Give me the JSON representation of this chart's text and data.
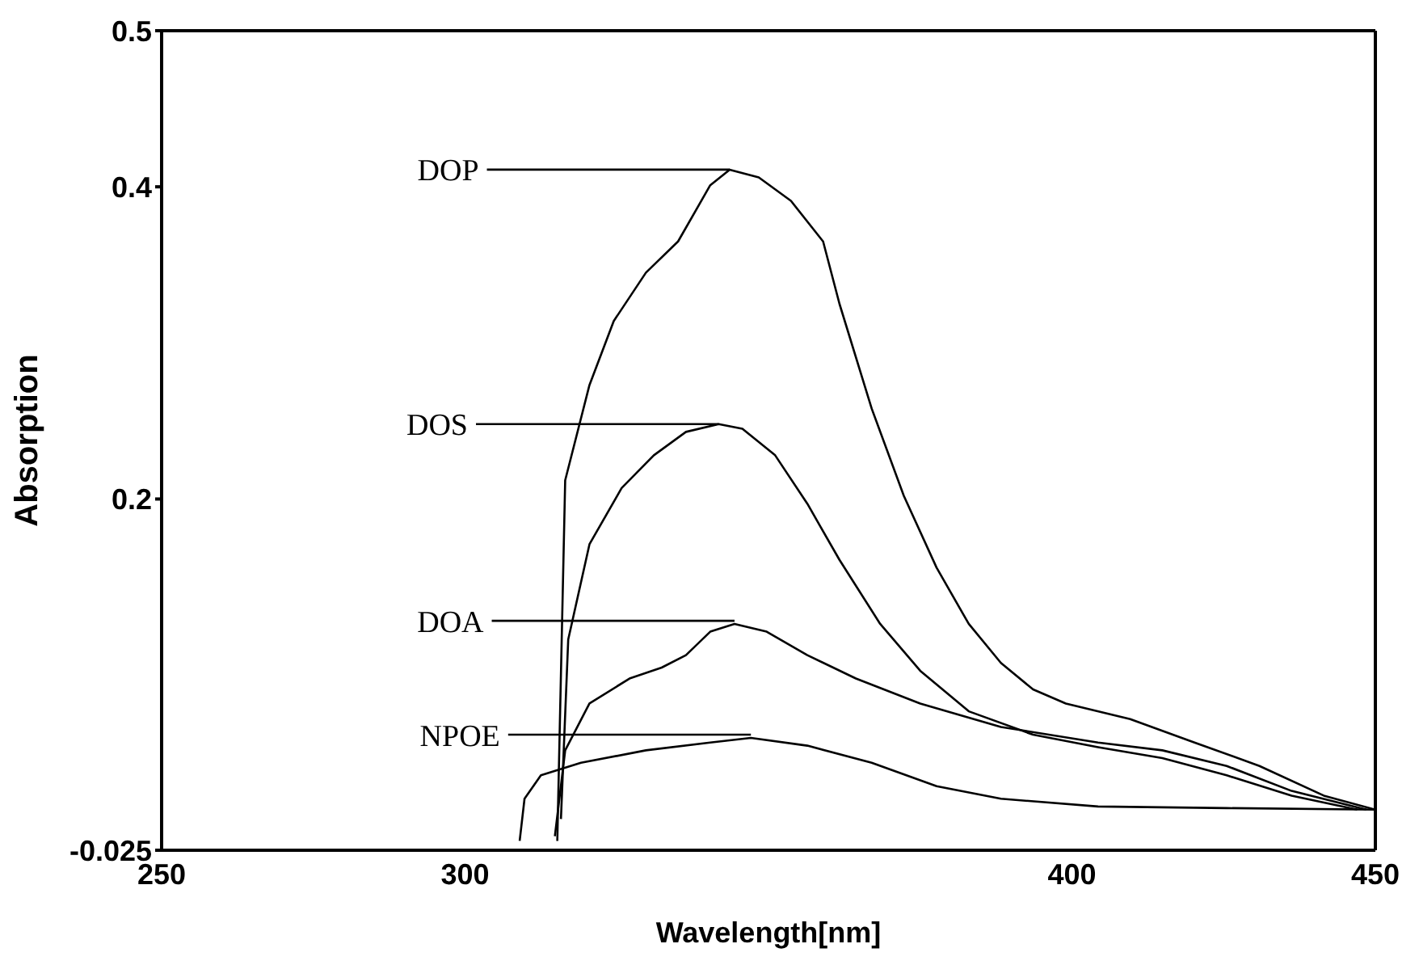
{
  "chart_data": {
    "type": "line",
    "xlabel": "Wavelength[nm]",
    "ylabel": "Absorption",
    "xlim": [
      250,
      450
    ],
    "xticks": [
      250,
      300,
      400,
      450
    ],
    "ylim": [
      -0.025,
      0.5
    ],
    "yticks": [
      -0.025,
      0.2,
      0.4,
      0.5
    ],
    "grid": false,
    "marker": "none",
    "line_style": "solid",
    "series": [
      {
        "color": "#000000",
        "x": [
          315.2,
          316.5,
          320.5,
          324.5,
          329.8,
          335.1,
          340.4,
          343.6,
          348.4,
          353.7,
          359.0,
          361.7,
          367.0,
          372.3,
          377.7,
          383.0,
          388.3,
          393.6,
          399.0,
          409.6,
          420.2,
          430.9,
          441.5,
          450
        ],
        "values": [
          -0.019,
          0.212,
          0.273,
          0.314,
          0.345,
          0.365,
          0.401,
          0.411,
          0.406,
          0.391,
          0.365,
          0.325,
          0.258,
          0.202,
          0.156,
          0.12,
          0.095,
          0.078,
          0.069,
          0.059,
          0.044,
          0.029,
          0.01,
          0.001
        ]
      },
      {
        "color": "#000000",
        "x": [
          315.8,
          317.0,
          320.5,
          325.8,
          331.1,
          336.4,
          341.8,
          345.7,
          351.1,
          356.4,
          361.7,
          368.4,
          375.0,
          383.0,
          393.6,
          404.3,
          414.9,
          425.5,
          436.2,
          447
        ],
        "values": [
          -0.005,
          0.11,
          0.171,
          0.207,
          0.228,
          0.243,
          0.248,
          0.245,
          0.228,
          0.197,
          0.161,
          0.12,
          0.09,
          0.064,
          0.049,
          0.041,
          0.034,
          0.023,
          0.01,
          0.001
        ]
      },
      {
        "color": "#000000",
        "x": [
          314.8,
          316.5,
          320.5,
          327.1,
          332.4,
          336.4,
          340.4,
          344.4,
          349.7,
          356.4,
          364.4,
          375.0,
          388.3,
          404.3,
          414.9,
          425.5,
          436.2,
          448.5
        ],
        "values": [
          -0.016,
          0.039,
          0.069,
          0.085,
          0.092,
          0.1,
          0.115,
          0.12,
          0.115,
          0.1,
          0.085,
          0.069,
          0.054,
          0.044,
          0.039,
          0.029,
          0.013,
          0.001
        ]
      },
      {
        "color": "#000000",
        "x": [
          309.0,
          309.8,
          312.5,
          319.1,
          329.8,
          340.4,
          347.1,
          356.4,
          367.0,
          377.7,
          388.3,
          404.3,
          425.5,
          450
        ],
        "values": [
          -0.019,
          0.008,
          0.023,
          0.031,
          0.039,
          0.044,
          0.047,
          0.042,
          0.031,
          0.016,
          0.008,
          0.003,
          0.002,
          0.001
        ]
      }
    ],
    "annotations": [
      {
        "text": "DOP",
        "x": 343.6,
        "y": 0.411
      },
      {
        "text": "DOS",
        "x": 341.8,
        "y": 0.248
      },
      {
        "text": "DOA",
        "x": 344.4,
        "y": 0.122
      },
      {
        "text": "NPOE",
        "x": 347.1,
        "y": 0.049
      }
    ]
  }
}
